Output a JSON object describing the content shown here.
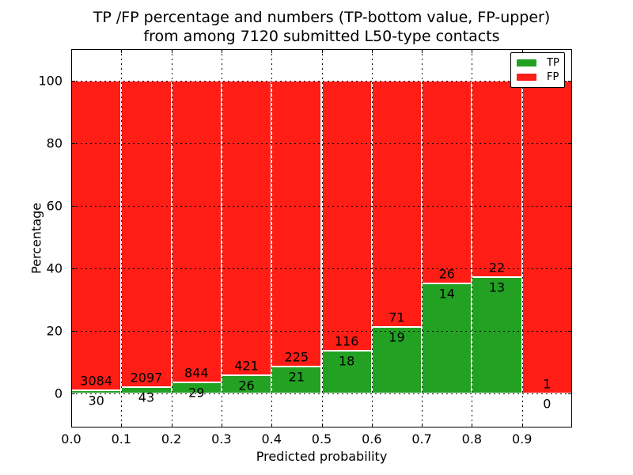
{
  "figure": {
    "title_line1": "TP /FP percentage and numbers (TP-bottom value, FP-upper)",
    "title_line2": "from among 7120 submitted L50-type contacts",
    "xlabel": "Predicted probability",
    "ylabel": "Percentage"
  },
  "legend": {
    "position": "upper right",
    "items": [
      {
        "label": "TP",
        "color": "#22a122"
      },
      {
        "label": "FP",
        "color": "#ff1d15"
      }
    ]
  },
  "chart_data": {
    "type": "bar",
    "stacked": true,
    "normalized": "each bin stacks to 100 percent",
    "title": "TP /FP percentage and numbers (TP-bottom value, FP-upper) from among 7120 submitted L50-type contacts",
    "xlabel": "Predicted probability",
    "ylabel": "Percentage",
    "total_submitted": 7120,
    "xlim": [
      0.0,
      1.0
    ],
    "ylim": [
      -11,
      110
    ],
    "grid": "dotted black, drawn over bars",
    "legend_position": "upper right",
    "bar_label_note": "TP count shown below stack boundary, FP count above it",
    "categories": [
      "0.0-0.1",
      "0.1-0.2",
      "0.2-0.3",
      "0.3-0.4",
      "0.4-0.5",
      "0.5-0.6",
      "0.6-0.7",
      "0.7-0.8",
      "0.8-0.9",
      "0.9-1.0"
    ],
    "series": [
      {
        "name": "TP",
        "color": "#22a122",
        "counts": [
          30,
          43,
          29,
          26,
          21,
          18,
          19,
          14,
          13,
          0
        ],
        "percent": [
          0.96,
          2.01,
          3.32,
          5.82,
          8.54,
          13.43,
          21.11,
          35.0,
          37.14,
          0.0
        ]
      },
      {
        "name": "FP",
        "color": "#ff1d15",
        "counts": [
          3084,
          2097,
          844,
          421,
          225,
          116,
          71,
          26,
          22,
          1
        ],
        "percent": [
          99.04,
          97.99,
          96.68,
          94.18,
          91.46,
          86.57,
          78.89,
          65.0,
          62.86,
          100.0
        ]
      }
    ],
    "xticks": [
      {
        "v": 0.0,
        "label": "0.0"
      },
      {
        "v": 0.1,
        "label": "0.1"
      },
      {
        "v": 0.2,
        "label": "0.2"
      },
      {
        "v": 0.3,
        "label": "0.3"
      },
      {
        "v": 0.4,
        "label": "0.4"
      },
      {
        "v": 0.5,
        "label": "0.5"
      },
      {
        "v": 0.6,
        "label": "0.6"
      },
      {
        "v": 0.7,
        "label": "0.7"
      },
      {
        "v": 0.8,
        "label": "0.8"
      },
      {
        "v": 0.9,
        "label": "0.9"
      }
    ],
    "yticks": [
      {
        "v": 0,
        "label": "0"
      },
      {
        "v": 20,
        "label": "20"
      },
      {
        "v": 40,
        "label": "40"
      },
      {
        "v": 60,
        "label": "60"
      },
      {
        "v": 80,
        "label": "80"
      },
      {
        "v": 100,
        "label": "100"
      }
    ]
  }
}
